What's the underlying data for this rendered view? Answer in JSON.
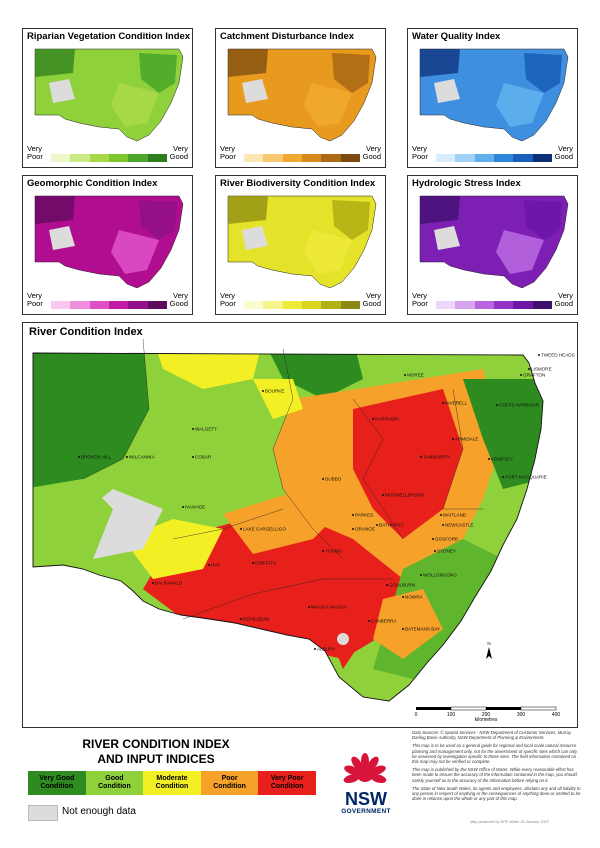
{
  "small_maps": [
    {
      "title": "Riparian Vegetation Condition Index",
      "low": "Very\nPoor",
      "high": "Very\nGood",
      "colors": [
        "#eef7c8",
        "#c9ea84",
        "#a8d84a",
        "#7ec52e",
        "#4ea72a",
        "#2e7e1f"
      ],
      "base": "#8fd13a"
    },
    {
      "title": "Catchment Disturbance Index",
      "low": "Very\nPoor",
      "high": "Very\nGood",
      "colors": [
        "#fbe6b5",
        "#f6c870",
        "#f0a830",
        "#d98a1c",
        "#ad6a15",
        "#7a4a0f"
      ],
      "base": "#e89a1f"
    },
    {
      "title": "Water Quality Index",
      "low": "Very\nPoor",
      "high": "Very\nGood",
      "colors": [
        "#d6eefb",
        "#9fd2f4",
        "#5fb0ec",
        "#2f87d9",
        "#1a5fb8",
        "#0d2f7a"
      ],
      "base": "#3f8fe0"
    },
    {
      "title": "Geomorphic Condition Index",
      "low": "Very\nPoor",
      "high": "Very\nGood",
      "colors": [
        "#f6c8ee",
        "#ee8fdd",
        "#de4fc6",
        "#c21ba8",
        "#921088",
        "#600a5c"
      ],
      "base": "#b10d91"
    },
    {
      "title": "River Biodiversity Condition Index",
      "low": "Very\nPoor",
      "high": "Very\nGood",
      "colors": [
        "#fbfbd0",
        "#f6f48a",
        "#eeea38",
        "#d8d51c",
        "#b2b015",
        "#8a8a12"
      ],
      "base": "#e5e22a"
    },
    {
      "title": "Hydrologic Stress Index",
      "low": "Very\nPoor",
      "high": "Very\nGood",
      "colors": [
        "#eed6f6",
        "#d7a4ee",
        "#b866e0",
        "#9330c8",
        "#6b16a6",
        "#40106e"
      ],
      "base": "#7e1fb4"
    }
  ],
  "main_title": "River Condition Index",
  "towns": [
    "BOURKE",
    "WALGETT",
    "MOREE",
    "INVERELL",
    "ARMIDALE",
    "COFFS HARBOUR",
    "GRAFTON",
    "TAMWORTH",
    "PORT MACQUARIE",
    "NARRABRI",
    "DUBBO",
    "BROKEN HILL",
    "COBAR",
    "IVANHOE",
    "LAKE CARGELLIGO",
    "PARKES",
    "ORANGE",
    "BATHURST",
    "NEWCASTLE",
    "GOSFORD",
    "SYDNEY",
    "WOLLONGONG",
    "NOWRA",
    "BATEMANS BAY",
    "HAY",
    "GRIFFITH",
    "WAGGA WAGGA",
    "ALBURY",
    "DENILIQUIN",
    "BALRANALD",
    "WILCANNIA",
    "YOUNG",
    "GOULBURN",
    "CANBERRA",
    "TWEED HEADS",
    "LISMORE",
    "KEMPSEY",
    "MUSWELLBROOK",
    "MAITLAND"
  ],
  "scale": {
    "labels": [
      "0",
      "100",
      "200",
      "300",
      "400"
    ],
    "unit": "kilometres",
    "north": "N"
  },
  "legend": {
    "title_line1": "RIVER CONDITION INDEX",
    "title_line2": "AND INPUT INDICES",
    "classes": [
      {
        "label": "Very Good\nCondition",
        "color": "#2e8b1f"
      },
      {
        "label": "Good\nCondition",
        "color": "#8fd13a"
      },
      {
        "label": "Moderate\nCondition",
        "color": "#f3ef25"
      },
      {
        "label": "Poor\nCondition",
        "color": "#f5a12a"
      },
      {
        "label": "Very Poor\nCondition",
        "color": "#e8201c"
      }
    ],
    "no_data": "Not enough data"
  },
  "logo": {
    "name": "NSW",
    "sub": "GOVERNMENT"
  },
  "notes": [
    "Data Sources: © Spatial Services - NSW Department of Customer Services, Murray Darling Basin Authority, NSW Department of Planning & Environment.",
    "This map is to be used as a general guide for regional and local scale natural resource planning and management only, not for the assessment of specific sites which can only be assessed by investigation specific to those sites. The field information contained on this map may not be verified or complete.",
    "This map is published by the NSW Office of Water. While every reasonable effort has been made to ensure the accuracy of the information contained in the map, you should satisfy yourself as to the accuracy of the information before relying on it.",
    "The State of New South Wales, its agents and employees, disclaim any and all liability to any person in respect of anything or the consequences of anything done or omitted to be done in reliance upon the whole or any part of this map."
  ],
  "credit": "Map produced by DPE Water 26 January 2023"
}
